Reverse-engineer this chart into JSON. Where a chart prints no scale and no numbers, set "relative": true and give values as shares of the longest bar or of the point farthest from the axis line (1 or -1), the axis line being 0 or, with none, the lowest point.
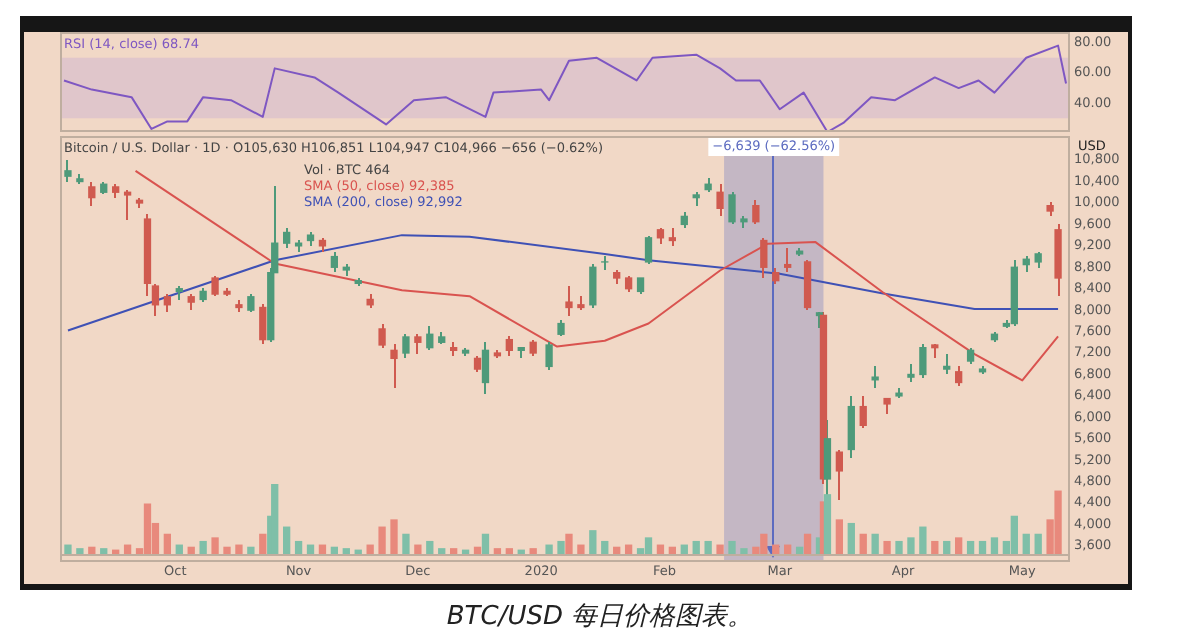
{
  "chart_data": [
    {
      "type": "line",
      "marker": "none",
      "legend": "top left",
      "tick_labels": "y",
      "xlim": [
        "2019-09-02",
        "2020-05-13"
      ],
      "ylim": [
        21,
        87
      ],
      "yticks": [
        {
          "value": 40,
          "label": "40.00"
        },
        {
          "value": 60,
          "label": "60.00"
        },
        {
          "value": 80,
          "label": "80.00"
        }
      ],
      "bands": [
        {
          "axis": "y",
          "from": 30,
          "to": 70,
          "color": "#b89cd6"
        }
      ],
      "series": [
        {
          "name": "RSI (14, close) 68.74",
          "color": "#7e57c2",
          "x": [
            "2019-09-03",
            "2019-09-10",
            "2019-09-20",
            "2019-09-25",
            "2019-09-29",
            "2019-10-04",
            "2019-10-08",
            "2019-10-15",
            "2019-10-23",
            "2019-10-26",
            "2019-11-05",
            "2019-11-11",
            "2019-11-23",
            "2019-11-30",
            "2019-12-08",
            "2019-12-18",
            "2019-12-20",
            "2020-01-01",
            "2020-01-03",
            "2020-01-08",
            "2020-01-15",
            "2020-01-25",
            "2020-01-29",
            "2020-02-09",
            "2020-02-15",
            "2020-02-19",
            "2020-02-25",
            "2020-03-01",
            "2020-03-07",
            "2020-03-13",
            "2020-03-17",
            "2020-03-24",
            "2020-03-30",
            "2020-04-09",
            "2020-04-15",
            "2020-04-20",
            "2020-04-24",
            "2020-05-02",
            "2020-05-10",
            "2020-05-12"
          ],
          "values": [
            55,
            49,
            44,
            23,
            28,
            28,
            44,
            42,
            31,
            63,
            57,
            47,
            26,
            42,
            44,
            31,
            47,
            49,
            42,
            68,
            70,
            55,
            70,
            72,
            63,
            55,
            55,
            36,
            47,
            21,
            27,
            44,
            42,
            57,
            50,
            55,
            47,
            70,
            78,
            53
          ]
        }
      ]
    },
    {
      "type": "candlestick",
      "marker": "none",
      "legend": "top",
      "ylabel": "USD",
      "xlim": [
        "2019-09-02",
        "2020-05-13"
      ],
      "ylim": [
        3300,
        11250
      ],
      "xticks": [
        {
          "value": "2019-10-01",
          "label": "Oct"
        },
        {
          "value": "2019-11-01",
          "label": "Nov"
        },
        {
          "value": "2019-12-01",
          "label": "Dec"
        },
        {
          "value": "2020-01-01",
          "label": "2020"
        },
        {
          "value": "2020-02-01",
          "label": "Feb"
        },
        {
          "value": "2020-03-01",
          "label": "Mar"
        },
        {
          "value": "2020-04-01",
          "label": "Apr"
        },
        {
          "value": "2020-05-01",
          "label": "May"
        }
      ],
      "yticks": [
        {
          "value": 3600,
          "label": "3,600"
        },
        {
          "value": 4000,
          "label": "4,000"
        },
        {
          "value": 4400,
          "label": "4,400"
        },
        {
          "value": 4800,
          "label": "4,800"
        },
        {
          "value": 5200,
          "label": "5,200"
        },
        {
          "value": 5600,
          "label": "5,600"
        },
        {
          "value": 6000,
          "label": "6,000"
        },
        {
          "value": 6400,
          "label": "6,400"
        },
        {
          "value": 6800,
          "label": "6,800"
        },
        {
          "value": 7200,
          "label": "7,200"
        },
        {
          "value": 7600,
          "label": "7,600"
        },
        {
          "value": 8000,
          "label": "8,000"
        },
        {
          "value": 8400,
          "label": "8,400"
        },
        {
          "value": 8800,
          "label": "8,800"
        },
        {
          "value": 9200,
          "label": "9,200"
        },
        {
          "value": 9600,
          "label": "9,600"
        },
        {
          "value": 10000,
          "label": "10,000"
        },
        {
          "value": 10400,
          "label": "10,400"
        },
        {
          "value": 10800,
          "label": "10,800"
        }
      ],
      "bands": [
        {
          "axis": "x",
          "from": "2020-02-16",
          "to": "2020-03-12",
          "label": "−6,639 (−62.56%)",
          "color": "#5c6bc0"
        }
      ],
      "ref_lines": [
        {
          "axis": "x",
          "value": "2020-02-28",
          "color": "#5c6bc0"
        }
      ],
      "annotations": [
        "Bitcoin / U.S. Dollar · 1D · O105,630 H106,851 L104,947 C104,966 −656 (−0.62%)",
        "BTC/USD 每日价格图表。"
      ],
      "series": [
        {
          "type": "candlestick",
          "x": [
            "2019-09-04",
            "2019-09-07",
            "2019-09-10",
            "2019-09-13",
            "2019-09-16",
            "2019-09-19",
            "2019-09-22",
            "2019-09-24",
            "2019-09-26",
            "2019-09-29",
            "2019-10-02",
            "2019-10-05",
            "2019-10-08",
            "2019-10-11",
            "2019-10-14",
            "2019-10-17",
            "2019-10-20",
            "2019-10-23",
            "2019-10-25",
            "2019-10-26",
            "2019-10-29",
            "2019-11-01",
            "2019-11-04",
            "2019-11-07",
            "2019-11-10",
            "2019-11-13",
            "2019-11-16",
            "2019-11-19",
            "2019-11-22",
            "2019-11-25",
            "2019-11-28",
            "2019-12-01",
            "2019-12-04",
            "2019-12-07",
            "2019-12-10",
            "2019-12-13",
            "2019-12-16",
            "2019-12-18",
            "2019-12-21",
            "2019-12-24",
            "2019-12-27",
            "2019-12-30",
            "2020-01-03",
            "2020-01-06",
            "2020-01-08",
            "2020-01-11",
            "2020-01-14",
            "2020-01-17",
            "2020-01-20",
            "2020-01-23",
            "2020-01-26",
            "2020-01-28",
            "2020-01-31",
            "2020-02-03",
            "2020-02-06",
            "2020-02-09",
            "2020-02-12",
            "2020-02-15",
            "2020-02-18",
            "2020-02-21",
            "2020-02-24",
            "2020-02-26",
            "2020-02-29",
            "2020-03-03",
            "2020-03-06",
            "2020-03-08",
            "2020-03-11",
            "2020-03-12",
            "2020-03-13",
            "2020-03-16",
            "2020-03-19",
            "2020-03-22",
            "2020-03-25",
            "2020-03-28",
            "2020-03-31",
            "2020-04-03",
            "2020-04-06",
            "2020-04-09",
            "2020-04-12",
            "2020-04-15",
            "2020-04-18",
            "2020-04-21",
            "2020-04-24",
            "2020-04-27",
            "2020-04-29",
            "2020-05-02",
            "2020-05-05",
            "2020-05-08",
            "2020-05-10"
          ],
          "ohlc": [
            [
              10500,
              10800,
              10400,
              10600
            ],
            [
              10400,
              10550,
              10350,
              10450
            ],
            [
              10300,
              10400,
              9950,
              10100
            ],
            [
              10200,
              10400,
              10150,
              10350
            ],
            [
              10300,
              10350,
              10100,
              10200
            ],
            [
              10200,
              10250,
              9700,
              10150
            ],
            [
              10050,
              10100,
              9900,
              10000
            ],
            [
              9700,
              9800,
              8250,
              8500
            ],
            [
              8450,
              8500,
              7900,
              8100
            ],
            [
              8250,
              8300,
              7950,
              8100
            ],
            [
              8350,
              8450,
              8200,
              8400
            ],
            [
              8250,
              8300,
              8000,
              8150
            ],
            [
              8200,
              8400,
              8150,
              8350
            ],
            [
              8600,
              8650,
              8250,
              8300
            ],
            [
              8350,
              8400,
              8250,
              8300
            ],
            [
              8100,
              8200,
              7950,
              8050
            ],
            [
              8000,
              8300,
              7950,
              8250
            ],
            [
              8050,
              8100,
              7350,
              7450
            ],
            [
              7450,
              8800,
              7400,
              8700
            ],
            [
              8700,
              10300,
              8700,
              9250
            ],
            [
              9250,
              9550,
              9150,
              9450
            ],
            [
              9200,
              9300,
              9100,
              9250
            ],
            [
              9300,
              9450,
              9200,
              9400
            ],
            [
              9300,
              9350,
              9100,
              9200
            ],
            [
              8800,
              9100,
              8700,
              9000
            ],
            [
              8750,
              8850,
              8650,
              8800
            ],
            [
              8500,
              8600,
              8450,
              8550
            ],
            [
              8200,
              8300,
              8050,
              8100
            ],
            [
              7650,
              7750,
              7300,
              7350
            ],
            [
              7250,
              7350,
              6550,
              7100
            ],
            [
              7200,
              7550,
              7100,
              7500
            ],
            [
              7500,
              7550,
              7200,
              7400
            ],
            [
              7300,
              7700,
              7250,
              7550
            ],
            [
              7400,
              7600,
              7350,
              7500
            ],
            [
              7300,
              7400,
              7150,
              7250
            ],
            [
              7200,
              7300,
              7150,
              7250
            ],
            [
              7100,
              7150,
              6850,
              6900
            ],
            [
              6650,
              7400,
              6450,
              7250
            ],
            [
              7200,
              7250,
              7100,
              7150
            ],
            [
              7450,
              7500,
              7150,
              7250
            ],
            [
              7250,
              7300,
              7100,
              7300
            ],
            [
              7400,
              7450,
              7150,
              7200
            ],
            [
              6950,
              7400,
              6900,
              7350
            ],
            [
              7550,
              7800,
              7500,
              7750
            ],
            [
              8150,
              8450,
              7900,
              8050
            ],
            [
              8100,
              8250,
              8000,
              8050
            ],
            [
              8100,
              8850,
              8050,
              8800
            ],
            [
              8900,
              9000,
              8750,
              8900
            ],
            [
              8700,
              8750,
              8500,
              8600
            ],
            [
              8600,
              8650,
              8350,
              8400
            ],
            [
              8350,
              8600,
              8300,
              8600
            ],
            [
              8900,
              9400,
              8850,
              9350
            ],
            [
              9500,
              9550,
              9250,
              9350
            ],
            [
              9350,
              9550,
              9200,
              9300
            ],
            [
              9600,
              9850,
              9550,
              9750
            ],
            [
              10100,
              10200,
              9950,
              10150
            ],
            [
              10250,
              10450,
              10200,
              10350
            ],
            [
              10200,
              10350,
              9750,
              9900
            ],
            [
              9650,
              10200,
              9600,
              10150
            ],
            [
              9650,
              9750,
              9550,
              9700
            ],
            [
              9950,
              10050,
              9600,
              9650
            ],
            [
              9300,
              9350,
              8600,
              8800
            ],
            [
              8700,
              8800,
              8500,
              8550
            ],
            [
              8850,
              9150,
              8700,
              8800
            ],
            [
              9050,
              9150,
              9000,
              9100
            ],
            [
              8900,
              8950,
              8000,
              8050
            ],
            [
              7900,
              7950,
              7650,
              7950
            ],
            [
              7900,
              7950,
              4750,
              4850
            ],
            [
              4850,
              5950,
              3850,
              5600
            ],
            [
              5350,
              5400,
              4450,
              5000
            ],
            [
              5400,
              6400,
              5250,
              6200
            ],
            [
              6200,
              6400,
              5800,
              5850
            ],
            [
              6700,
              6950,
              6550,
              6750
            ],
            [
              6350,
              6350,
              6050,
              6250
            ],
            [
              6400,
              6550,
              6350,
              6450
            ],
            [
              6750,
              7000,
              6650,
              6800
            ],
            [
              6800,
              7350,
              6750,
              7300
            ],
            [
              7350,
              7350,
              7100,
              7300
            ],
            [
              6900,
              7200,
              6800,
              6950
            ],
            [
              6850,
              6950,
              6600,
              6650
            ],
            [
              7050,
              7300,
              7000,
              7250
            ],
            [
              6850,
              6950,
              6800,
              6900
            ],
            [
              7450,
              7600,
              7400,
              7550
            ],
            [
              7700,
              7800,
              7650,
              7750
            ],
            [
              7750,
              8950,
              7700,
              8800
            ],
            [
              8850,
              9000,
              8700,
              8950
            ],
            [
              8900,
              9100,
              8800,
              9050
            ],
            [
              9950,
              10000,
              9750,
              9850
            ],
            [
              9500,
              9600,
              8250,
              8600
            ]
          ],
          "colors": [
            "#4e9a7a",
            "#4e9a7a",
            "#d05a4f",
            "#4e9a7a",
            "#d05a4f",
            "#d05a4f",
            "#d05a4f",
            "#d05a4f",
            "#d05a4f",
            "#d05a4f",
            "#4e9a7a",
            "#d05a4f",
            "#4e9a7a",
            "#d05a4f",
            "#d05a4f",
            "#d05a4f",
            "#4e9a7a",
            "#d05a4f",
            "#4e9a7a",
            "#4e9a7a",
            "#4e9a7a",
            "#4e9a7a",
            "#4e9a7a",
            "#d05a4f",
            "#4e9a7a",
            "#4e9a7a",
            "#4e9a7a",
            "#d05a4f",
            "#d05a4f",
            "#d05a4f",
            "#4e9a7a",
            "#d05a4f",
            "#4e9a7a",
            "#4e9a7a",
            "#d05a4f",
            "#4e9a7a",
            "#d05a4f",
            "#4e9a7a",
            "#d05a4f",
            "#d05a4f",
            "#4e9a7a",
            "#d05a4f",
            "#4e9a7a",
            "#4e9a7a",
            "#d05a4f",
            "#d05a4f",
            "#4e9a7a",
            "#4e9a7a",
            "#d05a4f",
            "#d05a4f",
            "#4e9a7a",
            "#4e9a7a",
            "#d05a4f",
            "#d05a4f",
            "#4e9a7a",
            "#4e9a7a",
            "#4e9a7a",
            "#d05a4f",
            "#4e9a7a",
            "#4e9a7a",
            "#d05a4f",
            "#d05a4f",
            "#d05a4f",
            "#d05a4f",
            "#4e9a7a",
            "#d05a4f",
            "#4e9a7a",
            "#d05a4f",
            "#4e9a7a",
            "#d05a4f",
            "#4e9a7a",
            "#d05a4f",
            "#4e9a7a",
            "#d05a4f",
            "#4e9a7a",
            "#4e9a7a",
            "#4e9a7a",
            "#d05a4f",
            "#4e9a7a",
            "#d05a4f",
            "#4e9a7a",
            "#4e9a7a",
            "#4e9a7a",
            "#4e9a7a",
            "#4e9a7a",
            "#4e9a7a",
            "#4e9a7a",
            "#d05a4f",
            "#d05a4f"
          ]
        },
        {
          "type": "line",
          "name": "SMA (50, close) 92,385",
          "color": "#d9534f",
          "x": [
            "2019-09-21",
            "2019-10-26",
            "2019-11-27",
            "2019-12-14",
            "2020-01-05",
            "2020-01-17",
            "2020-01-28",
            "2020-02-15",
            "2020-02-27",
            "2020-03-10",
            "2020-03-27",
            "2020-04-19",
            "2020-05-01",
            "2020-05-10"
          ],
          "values": [
            10600,
            8870,
            8370,
            8260,
            7320,
            7430,
            7750,
            8740,
            9240,
            9270,
            8330,
            7180,
            6690,
            7510
          ]
        },
        {
          "type": "line",
          "name": "SMA (200, close) 92,992",
          "color": "#3f51b5",
          "x": [
            "2019-09-04",
            "2019-10-26",
            "2019-11-27",
            "2019-12-14",
            "2020-01-17",
            "2020-01-28",
            "2020-03-01",
            "2020-03-27",
            "2020-04-19",
            "2020-05-10"
          ],
          "values": [
            7620,
            8930,
            9400,
            9370,
            9050,
            8930,
            8680,
            8310,
            8020,
            8020
          ]
        }
      ]
    },
    {
      "type": "bar",
      "relative": true,
      "tick_labels": false,
      "xlim": [
        "2019-09-02",
        "2020-05-13"
      ],
      "annotations": [
        "Vol · BTC 464"
      ],
      "x": [
        "2019-09-04",
        "2019-09-07",
        "2019-09-10",
        "2019-09-13",
        "2019-09-16",
        "2019-09-19",
        "2019-09-22",
        "2019-09-24",
        "2019-09-26",
        "2019-09-29",
        "2019-10-02",
        "2019-10-05",
        "2019-10-08",
        "2019-10-11",
        "2019-10-14",
        "2019-10-17",
        "2019-10-20",
        "2019-10-23",
        "2019-10-25",
        "2019-10-26",
        "2019-10-29",
        "2019-11-01",
        "2019-11-04",
        "2019-11-07",
        "2019-11-10",
        "2019-11-13",
        "2019-11-16",
        "2019-11-19",
        "2019-11-22",
        "2019-11-25",
        "2019-11-28",
        "2019-12-01",
        "2019-12-04",
        "2019-12-07",
        "2019-12-10",
        "2019-12-13",
        "2019-12-16",
        "2019-12-18",
        "2019-12-21",
        "2019-12-24",
        "2019-12-27",
        "2019-12-30",
        "2020-01-03",
        "2020-01-06",
        "2020-01-08",
        "2020-01-11",
        "2020-01-14",
        "2020-01-17",
        "2020-01-20",
        "2020-01-23",
        "2020-01-26",
        "2020-01-28",
        "2020-01-31",
        "2020-02-03",
        "2020-02-06",
        "2020-02-09",
        "2020-02-12",
        "2020-02-15",
        "2020-02-18",
        "2020-02-21",
        "2020-02-24",
        "2020-02-26",
        "2020-02-29",
        "2020-03-03",
        "2020-03-06",
        "2020-03-08",
        "2020-03-11",
        "2020-03-12",
        "2020-03-13",
        "2020-03-16",
        "2020-03-19",
        "2020-03-22",
        "2020-03-25",
        "2020-03-28",
        "2020-03-31",
        "2020-04-03",
        "2020-04-06",
        "2020-04-09",
        "2020-04-12",
        "2020-04-15",
        "2020-04-18",
        "2020-04-21",
        "2020-04-24",
        "2020-04-27",
        "2020-04-29",
        "2020-05-02",
        "2020-05-05",
        "2020-05-08",
        "2020-05-10"
      ],
      "values": [
        0.15,
        0.1,
        0.12,
        0.1,
        0.08,
        0.15,
        0.1,
        0.72,
        0.45,
        0.3,
        0.15,
        0.12,
        0.2,
        0.25,
        0.12,
        0.15,
        0.12,
        0.3,
        0.55,
        1,
        0.4,
        0.2,
        0.15,
        0.15,
        0.12,
        0.1,
        0.08,
        0.15,
        0.4,
        0.5,
        0.3,
        0.15,
        0.2,
        0.1,
        0.1,
        0.08,
        0.12,
        0.3,
        0.1,
        0.1,
        0.08,
        0.1,
        0.15,
        0.2,
        0.3,
        0.15,
        0.35,
        0.2,
        0.12,
        0.15,
        0.1,
        0.25,
        0.15,
        0.12,
        0.15,
        0.2,
        0.2,
        0.15,
        0.2,
        0.1,
        0.12,
        0.3,
        0.15,
        0.15,
        0.12,
        0.3,
        0.25,
        0.75,
        0.85,
        0.5,
        0.45,
        0.3,
        0.3,
        0.2,
        0.2,
        0.25,
        0.4,
        0.2,
        0.2,
        0.25,
        0.2,
        0.2,
        0.25,
        0.2,
        0.55,
        0.3,
        0.3,
        0.5,
        0.9
      ],
      "colors": [
        "#7fbfa8",
        "#7fbfa8",
        "#e8897c",
        "#7fbfa8",
        "#e8897c",
        "#e8897c",
        "#e8897c",
        "#e8897c",
        "#e8897c",
        "#e8897c",
        "#7fbfa8",
        "#e8897c",
        "#7fbfa8",
        "#e8897c",
        "#e8897c",
        "#e8897c",
        "#7fbfa8",
        "#e8897c",
        "#7fbfa8",
        "#7fbfa8",
        "#7fbfa8",
        "#7fbfa8",
        "#7fbfa8",
        "#e8897c",
        "#7fbfa8",
        "#7fbfa8",
        "#7fbfa8",
        "#e8897c",
        "#e8897c",
        "#e8897c",
        "#7fbfa8",
        "#e8897c",
        "#7fbfa8",
        "#7fbfa8",
        "#e8897c",
        "#7fbfa8",
        "#e8897c",
        "#7fbfa8",
        "#e8897c",
        "#e8897c",
        "#7fbfa8",
        "#e8897c",
        "#7fbfa8",
        "#7fbfa8",
        "#e8897c",
        "#e8897c",
        "#7fbfa8",
        "#7fbfa8",
        "#e8897c",
        "#e8897c",
        "#7fbfa8",
        "#7fbfa8",
        "#e8897c",
        "#e8897c",
        "#7fbfa8",
        "#7fbfa8",
        "#7fbfa8",
        "#e8897c",
        "#7fbfa8",
        "#7fbfa8",
        "#e8897c",
        "#e8897c",
        "#e8897c",
        "#e8897c",
        "#7fbfa8",
        "#e8897c",
        "#7fbfa8",
        "#e8897c",
        "#7fbfa8",
        "#e8897c",
        "#7fbfa8",
        "#e8897c",
        "#7fbfa8",
        "#e8897c",
        "#7fbfa8",
        "#7fbfa8",
        "#7fbfa8",
        "#e8897c",
        "#7fbfa8",
        "#e8897c",
        "#7fbfa8",
        "#7fbfa8",
        "#7fbfa8",
        "#7fbfa8",
        "#7fbfa8",
        "#7fbfa8",
        "#7fbfa8",
        "#e8897c",
        "#e8897c"
      ]
    }
  ]
}
